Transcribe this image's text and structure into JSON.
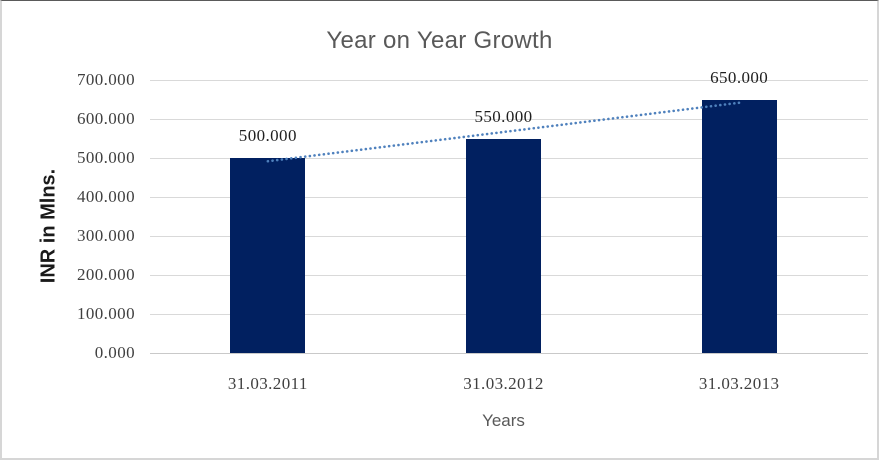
{
  "chart_data": {
    "type": "bar",
    "title": "Year on Year Growth",
    "categories": [
      "31.03.2011",
      "31.03.2012",
      "31.03.2013"
    ],
    "values": [
      500,
      550,
      650
    ],
    "value_labels": [
      "500.000",
      "550.000",
      "650.000"
    ],
    "xlabel": "Years",
    "ylabel": "INR in Mlns.",
    "ylim": [
      0,
      700
    ],
    "yticks": [
      {
        "value": 0,
        "label": "0.000"
      },
      {
        "value": 100,
        "label": "100.000"
      },
      {
        "value": 200,
        "label": "200.000"
      },
      {
        "value": 300,
        "label": "300.000"
      },
      {
        "value": 400,
        "label": "400.000"
      },
      {
        "value": 500,
        "label": "500.000"
      },
      {
        "value": 600,
        "label": "600.000"
      },
      {
        "value": 700,
        "label": "700.000"
      }
    ],
    "grid": true,
    "legend": false,
    "data_labels": true,
    "trendline": {
      "type": "linear",
      "style": "dotted"
    },
    "colors": {
      "bar": "#012060",
      "trendline": "#4f81bd",
      "gridline": "#d9d9d9",
      "zero_line": "#c9c9c9",
      "title_text": "#595959",
      "tick_text": "#3f3f3f",
      "data_label_text": "#1f1f1f",
      "x_axis_title_text": "#595959",
      "y_axis_title_text": "#1a1a1a"
    }
  }
}
